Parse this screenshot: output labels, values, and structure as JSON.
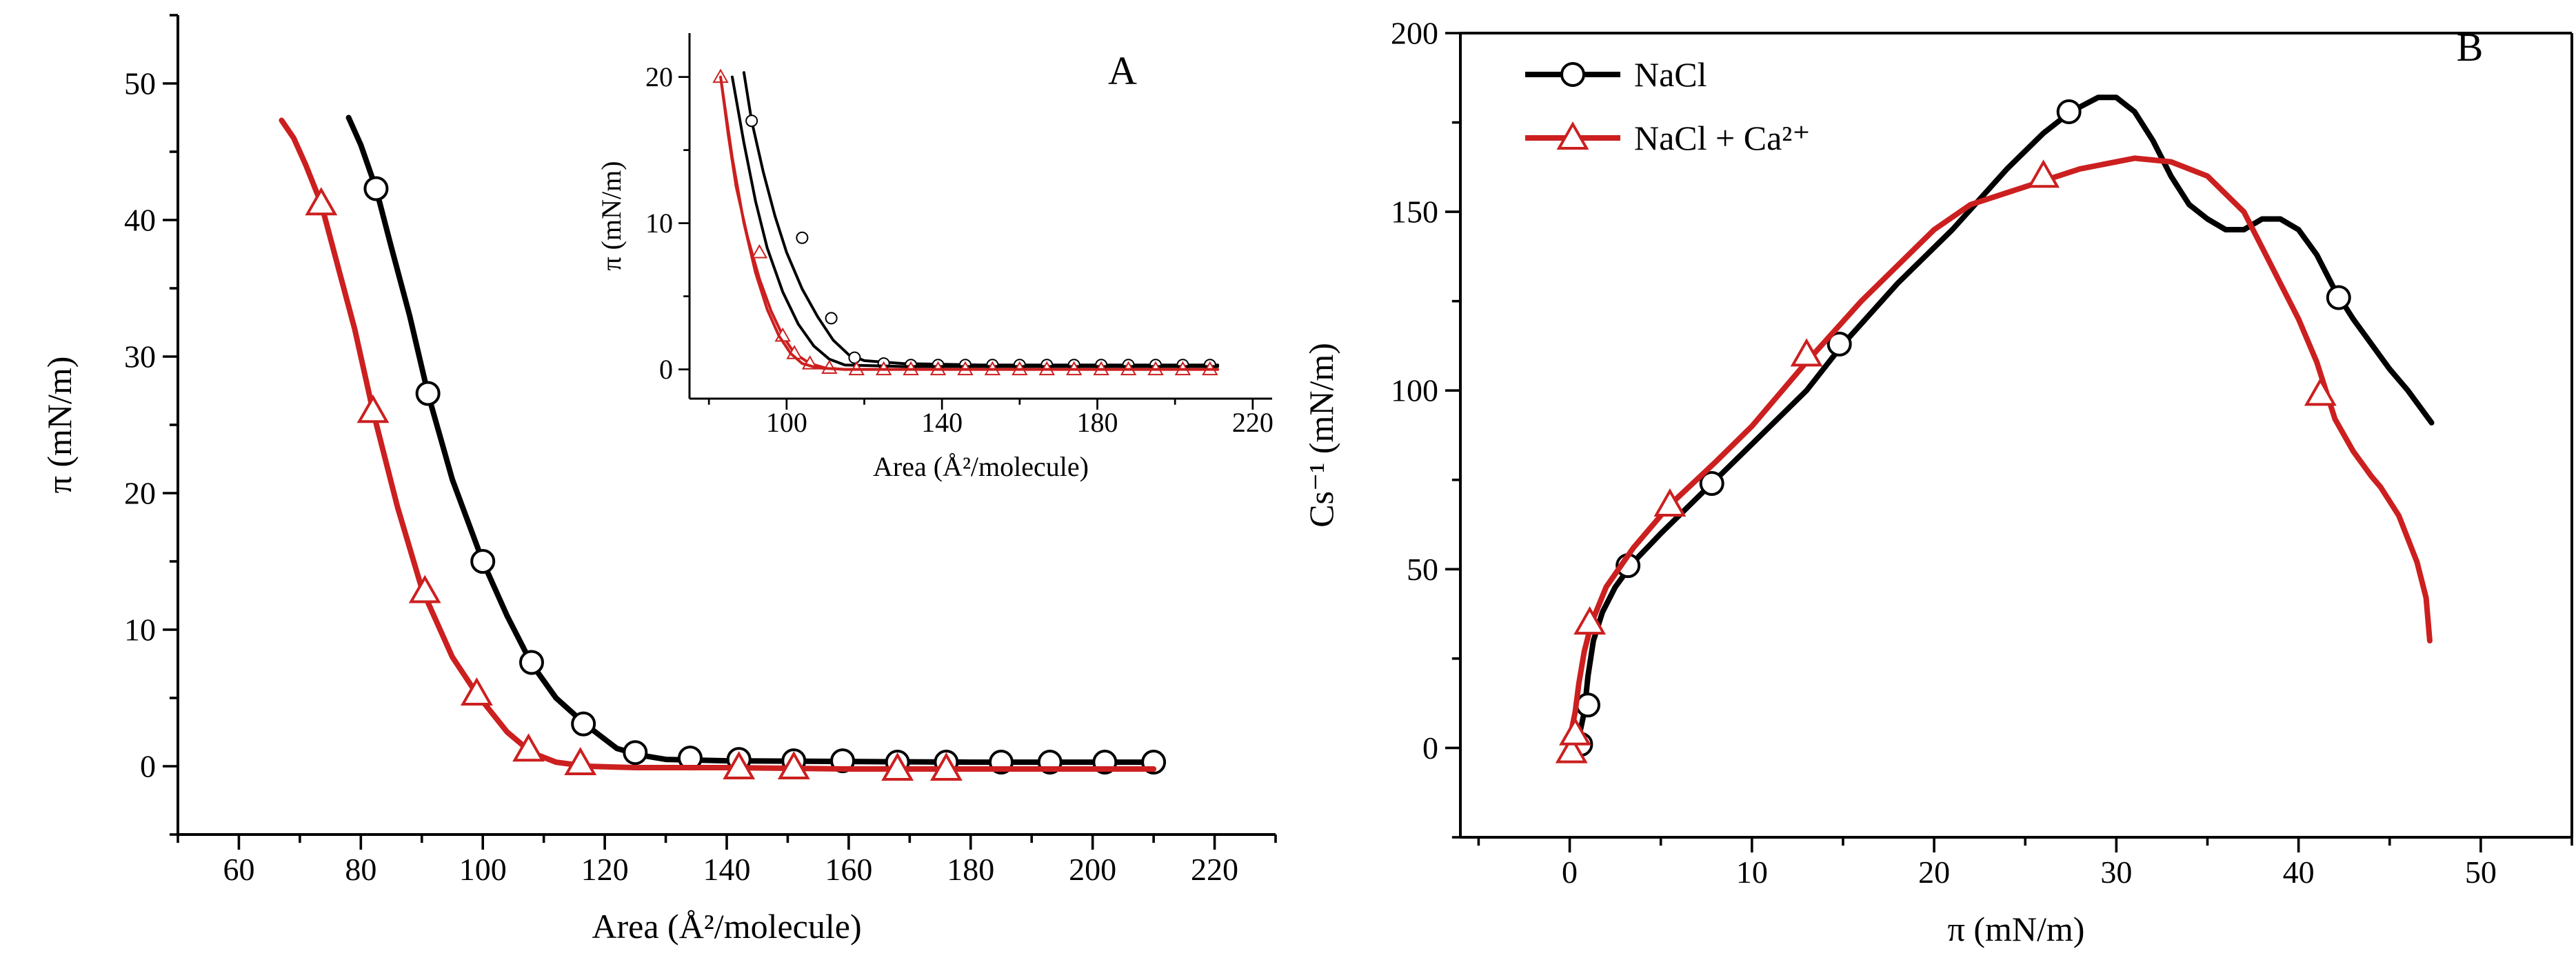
{
  "colors": {
    "nacl": "#000000",
    "nacl_ca": "#cc1f1f",
    "axis": "#000000",
    "marker_fill": "#ffffff"
  },
  "chart_data": [
    {
      "id": "A",
      "type": "line",
      "panel_label": "A",
      "xlabel": "Area (Å²/molecule)",
      "ylabel": "π (mN/m)",
      "xlim": [
        50,
        230
      ],
      "ylim": [
        -5,
        55
      ],
      "xticks": [
        60,
        80,
        100,
        120,
        140,
        160,
        180,
        200,
        220
      ],
      "yticks": [
        0,
        10,
        20,
        30,
        40,
        50
      ],
      "grid": false,
      "series": [
        {
          "key": "nacl",
          "marker": "circle",
          "x": [
            78,
            80,
            82.5,
            85,
            88,
            91,
            95,
            100,
            104,
            108,
            112,
            117,
            122,
            126,
            130,
            140,
            160,
            180,
            200,
            210
          ],
          "y": [
            47.5,
            45.5,
            42.3,
            38,
            33,
            27.3,
            21,
            15,
            11,
            7.5,
            5,
            3,
            1.3,
            0.8,
            0.5,
            0.4,
            0.35,
            0.3,
            0.3,
            0.3
          ],
          "marker_x": [
            82.5,
            91,
            100,
            108,
            116.5,
            125,
            134,
            142,
            151,
            159,
            168,
            176,
            185,
            193,
            202,
            210
          ],
          "marker_y": [
            42.3,
            27.3,
            15,
            7.6,
            3.1,
            1,
            0.6,
            0.5,
            0.4,
            0.4,
            0.3,
            0.3,
            0.3,
            0.3,
            0.3,
            0.3
          ]
        },
        {
          "key": "nacl_ca",
          "marker": "triangle",
          "x": [
            67,
            69,
            71,
            73.5,
            76,
            79,
            82,
            86,
            90,
            95,
            99,
            104,
            108,
            112,
            117,
            125,
            140,
            160,
            180,
            200,
            210
          ],
          "y": [
            47.3,
            46,
            44,
            41.2,
            37,
            32,
            26,
            19,
            13,
            8,
            5.3,
            2.5,
            1,
            0.3,
            0,
            -0.1,
            -0.1,
            -0.2,
            -0.2,
            -0.2,
            -0.2
          ],
          "marker_x": [
            73.5,
            82,
            90.5,
            99,
            107.5,
            116,
            142,
            151,
            168,
            176
          ],
          "marker_y": [
            41.2,
            26,
            12.8,
            5.3,
            1.2,
            0.2,
            -0.1,
            -0.1,
            -0.2,
            -0.2
          ]
        }
      ],
      "inset": {
        "xlabel": "Area (Å²/molecule)",
        "ylabel": "π (mN/m)",
        "xlim": [
          75,
          225
        ],
        "ylim": [
          -2,
          23
        ],
        "xticks": [
          100,
          140,
          180,
          220
        ],
        "yticks": [
          0,
          10,
          20
        ],
        "series": [
          {
            "key": "nacl",
            "marker": "circle",
            "x": [
              89,
              91,
              94,
              97,
              100,
              104,
              108,
              112,
              116,
              120,
              130,
              150,
              180,
              211
            ],
            "y": [
              20.3,
              17,
              13.5,
              10.5,
              8,
              5.5,
              3.6,
              2,
              1,
              0.6,
              0.4,
              0.3,
              0.3,
              0.3
            ],
            "marker_x": [
              91,
              104,
              111.5,
              117.5,
              125,
              132,
              139,
              146,
              153,
              160,
              167,
              174,
              181,
              188,
              195,
              202,
              209
            ],
            "marker_y": [
              17,
              9,
              3.5,
              0.8,
              0.4,
              0.3,
              0.3,
              0.3,
              0.3,
              0.3,
              0.3,
              0.3,
              0.3,
              0.3,
              0.3,
              0.3,
              0.3
            ]
          },
          {
            "key": "nacl",
            "marker": "none",
            "x": [
              86,
              89,
              92,
              95,
              99,
              103,
              107,
              111,
              115,
              130,
              180,
              211
            ],
            "y": [
              20,
              15.5,
              11.5,
              8.3,
              5.3,
              3.1,
              1.6,
              0.7,
              0.3,
              0.2,
              0.2,
              0.2
            ],
            "marker_x": [],
            "marker_y": []
          },
          {
            "key": "nacl_ca",
            "marker": "triangle",
            "x": [
              83,
              85,
              87,
              90,
              93,
              96,
              99,
              102,
              106,
              110,
              115,
              130,
              180,
              211
            ],
            "y": [
              20,
              16,
              12.5,
              9,
              6.2,
              4,
              2.3,
              1.1,
              0.4,
              0.1,
              0,
              0,
              0,
              0
            ],
            "marker_x": [
              83,
              93,
              99,
              102,
              106,
              111,
              118,
              125,
              132,
              139,
              146,
              153,
              160,
              167,
              174,
              181,
              188,
              195,
              202,
              209
            ],
            "marker_y": [
              20,
              8,
              2.3,
              1.1,
              0.4,
              0.1,
              0,
              0,
              0,
              0,
              0,
              0,
              0,
              0,
              0,
              0,
              0,
              0,
              0,
              0
            ]
          },
          {
            "key": "nacl_ca",
            "marker": "none",
            "x": [
              83,
              86,
              89,
              92,
              95,
              98,
              101,
              104,
              108,
              115,
              180,
              211
            ],
            "y": [
              20,
              14.5,
              10,
              6.6,
              4.1,
              2.3,
              1.1,
              0.4,
              0.1,
              0,
              0,
              0
            ],
            "marker_x": [],
            "marker_y": []
          }
        ]
      }
    },
    {
      "id": "B",
      "type": "line",
      "panel_label": "B",
      "xlabel": "π (mN/m)",
      "ylabel": "Cs⁻¹ (mN/m)",
      "xlim": [
        -6,
        55
      ],
      "ylim": [
        -25,
        200
      ],
      "xticks": [
        0,
        10,
        20,
        30,
        40,
        50
      ],
      "yticks": [
        0,
        50,
        100,
        150,
        200
      ],
      "grid": false,
      "legend": {
        "position": "top-left",
        "entries": [
          {
            "key": "nacl",
            "label": "NaCl",
            "marker": "circle"
          },
          {
            "key": "nacl_ca",
            "label": "NaCl + Ca²⁺",
            "marker": "triangle"
          }
        ]
      },
      "series": [
        {
          "key": "nacl",
          "marker": "circle",
          "x": [
            0.3,
            0.5,
            0.8,
            1,
            1.3,
            1.8,
            2.5,
            3.5,
            5,
            7,
            10,
            13,
            15,
            18,
            21,
            24,
            26,
            27.5,
            29,
            30,
            31,
            32,
            33,
            34,
            35,
            36,
            37,
            38,
            39,
            40,
            41,
            42,
            43,
            44,
            45,
            46,
            47.3
          ],
          "y": [
            0,
            3,
            10,
            20,
            30,
            38,
            45,
            52,
            60,
            70,
            85,
            100,
            113,
            130,
            145,
            162,
            172,
            178,
            182,
            182,
            178,
            170,
            160,
            152,
            148,
            145,
            145,
            148,
            148,
            145,
            138,
            128,
            120,
            113,
            106,
            100,
            91
          ],
          "marker_x": [
            0.6,
            1,
            3.2,
            7.8,
            14.8,
            27.4,
            42.2
          ],
          "marker_y": [
            1,
            12,
            51,
            74,
            113,
            178,
            126
          ]
        },
        {
          "key": "nacl_ca",
          "marker": "triangle",
          "x": [
            0,
            0.1,
            0.3,
            0.5,
            0.8,
            1.2,
            2,
            3.5,
            5.5,
            8,
            10,
            13,
            16,
            20,
            22,
            25,
            28,
            31,
            33,
            35,
            37,
            38,
            39,
            40,
            41,
            42,
            43,
            44,
            44.5,
            45.5,
            46.5,
            47,
            47.2
          ],
          "y": [
            0,
            5,
            10,
            18,
            27,
            35,
            45,
            56,
            68,
            80,
            90,
            108,
            125,
            145,
            152,
            157,
            162,
            165,
            164,
            160,
            150,
            140,
            130,
            120,
            108,
            92,
            83,
            76,
            73,
            65,
            52,
            42,
            30
          ],
          "marker_x": [
            0.1,
            0.3,
            1.1,
            5.5,
            13,
            26,
            41.2
          ],
          "marker_y": [
            -1,
            4,
            35,
            68,
            110,
            160,
            99
          ]
        }
      ]
    }
  ]
}
